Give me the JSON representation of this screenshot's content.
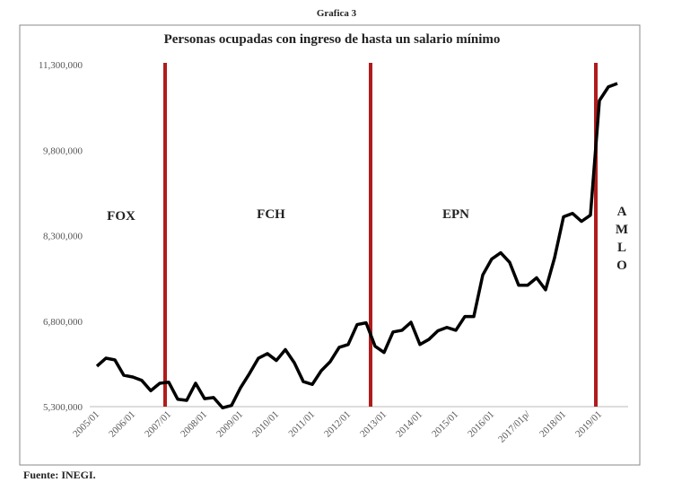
{
  "chart_data": {
    "type": "line",
    "figure_label": "Grafica 3",
    "title": "Personas ocupadas con ingreso de hasta un salario mínimo",
    "source": "Fuente: INEGI.",
    "categories": [
      "2005/01",
      null,
      null,
      null,
      "2006/01",
      null,
      null,
      null,
      "2007/01",
      null,
      null,
      null,
      "2008/01",
      null,
      null,
      null,
      "2009/01",
      null,
      null,
      null,
      "2010/01",
      null,
      null,
      null,
      "2011/01",
      null,
      null,
      null,
      "2012/01",
      null,
      null,
      null,
      "2013/01",
      null,
      null,
      null,
      "2014/01",
      null,
      null,
      null,
      "2015/01",
      null,
      null,
      null,
      "2016/01",
      null,
      null,
      null,
      "2017/01p/",
      null,
      null,
      null,
      "2018/01",
      null,
      null,
      null,
      "2019/01",
      null,
      null
    ],
    "series": [
      {
        "color": "#000000",
        "values": [
          6010000,
          6150000,
          6120000,
          5850000,
          5820000,
          5760000,
          5580000,
          5710000,
          5730000,
          5430000,
          5410000,
          5710000,
          5440000,
          5460000,
          5280000,
          5320000,
          5630000,
          5880000,
          6150000,
          6230000,
          6110000,
          6300000,
          6070000,
          5740000,
          5690000,
          5930000,
          6090000,
          6340000,
          6390000,
          6740000,
          6770000,
          6360000,
          6250000,
          6610000,
          6640000,
          6780000,
          6390000,
          6480000,
          6630000,
          6690000,
          6640000,
          6880000,
          6880000,
          7610000,
          7890000,
          8000000,
          7830000,
          7430000,
          7430000,
          7560000,
          7350000,
          7910000,
          8630000,
          8690000,
          8550000,
          8660000,
          10670000,
          10910000,
          10970000
        ]
      }
    ],
    "ylim": [
      5300000,
      11300000
    ],
    "yticks": [
      {
        "value": 5300000,
        "label": "5,300,000"
      },
      {
        "value": 6800000,
        "label": "6,800,000"
      },
      {
        "value": 8300000,
        "label": "8,300,000"
      },
      {
        "value": 9800000,
        "label": "9,800,000"
      },
      {
        "value": 11300000,
        "label": "11,300,000"
      }
    ],
    "annotations": [
      "FOX",
      "FCH",
      "EPN",
      "AMLO"
    ],
    "marker_color": "#b01c1c",
    "grid": false
  }
}
